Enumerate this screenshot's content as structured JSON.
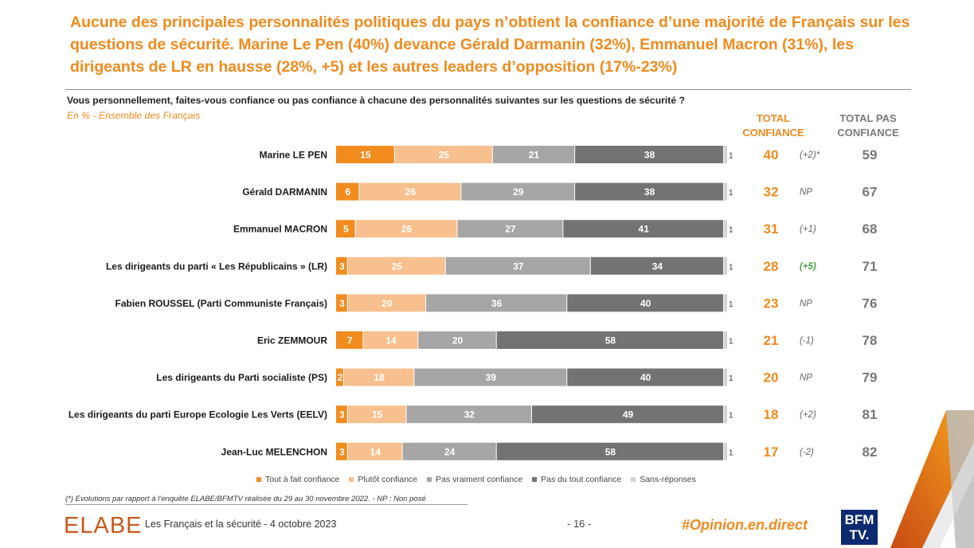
{
  "headline": "Aucune des principales personnalités politiques du pays n’obtient la confiance d’une majorité de Français sur les questions de sécurité. Marine Le Pen (40%) devance Gérald Darmanin (32%), Emmanuel Macron (31%), les dirigeants de LR en hausse (28%, +5) et les autres leaders d’opposition (17%-23%)",
  "question": "Vous personnellement, faites-vous confiance ou pas confiance à chacune des personnalités suivantes sur les questions de sécurité ?",
  "subtitle": "En % - Ensemble des Français",
  "col_total_confiance": "TOTAL CONFIANCE",
  "col_total_pas_confiance": "TOTAL PAS CONFIANCE",
  "colors": {
    "tout_a_fait": "#f28c1e",
    "plutot": "#f8c08e",
    "pas_vraiment": "#a6a6a6",
    "pas_du_tout": "#737373",
    "sans_reponse": "#d3d3d3",
    "accent": "#f08a1d",
    "positive_evolution": "#4aa040"
  },
  "chart_data": {
    "type": "bar",
    "orientation": "horizontal",
    "stacked": true,
    "categories": [
      "Marine LE PEN",
      "Gérald DARMANIN",
      "Emmanuel MACRON",
      "Les dirigeants du parti « Les Républicains » (LR)",
      "Fabien ROUSSEL (Parti Communiste Français)",
      "Eric ZEMMOUR",
      "Les dirigeants du Parti socialiste (PS)",
      "Les dirigeants du parti Europe Ecologie Les Verts (EELV)",
      "Jean-Luc MELENCHON"
    ],
    "series": [
      {
        "name": "Tout à fait confiance",
        "values": [
          15,
          6,
          5,
          3,
          3,
          7,
          2,
          3,
          3
        ]
      },
      {
        "name": "Plutôt confiance",
        "values": [
          25,
          26,
          26,
          25,
          20,
          14,
          18,
          15,
          14
        ]
      },
      {
        "name": "Pas vraiment confiance",
        "values": [
          21,
          29,
          27,
          37,
          36,
          20,
          39,
          32,
          24
        ]
      },
      {
        "name": "Pas du tout confiance",
        "values": [
          38,
          38,
          41,
          34,
          40,
          58,
          40,
          49,
          58
        ]
      },
      {
        "name": "Sans-réponses",
        "values": [
          1,
          1,
          1,
          1,
          1,
          1,
          1,
          1,
          1
        ]
      }
    ],
    "total_confiance": [
      40,
      32,
      31,
      28,
      23,
      21,
      20,
      18,
      17
    ],
    "evolution": [
      "(+2)*",
      "NP",
      "(+1)",
      "(+5)",
      "NP",
      "(-1)",
      "NP",
      "(+2)",
      "(-2)"
    ],
    "total_pas_confiance": [
      59,
      67,
      68,
      71,
      76,
      78,
      79,
      81,
      82
    ],
    "xlim": [
      0,
      100
    ],
    "unit": "%"
  },
  "footnote": "(*) Evolutions par rapport à l’enquête ELABE/BFMTV réalisée du 29 au 30 novembre 2022. -    NP : Non posé",
  "footer": {
    "logo": "ELABE",
    "study": "Les Français et la sécurité - 4 octobre 2023",
    "page": "- 16 -",
    "hashtag": "#Opinion.en.direct",
    "partner_logo_line1": "BFM",
    "partner_logo_line2": "TV."
  }
}
